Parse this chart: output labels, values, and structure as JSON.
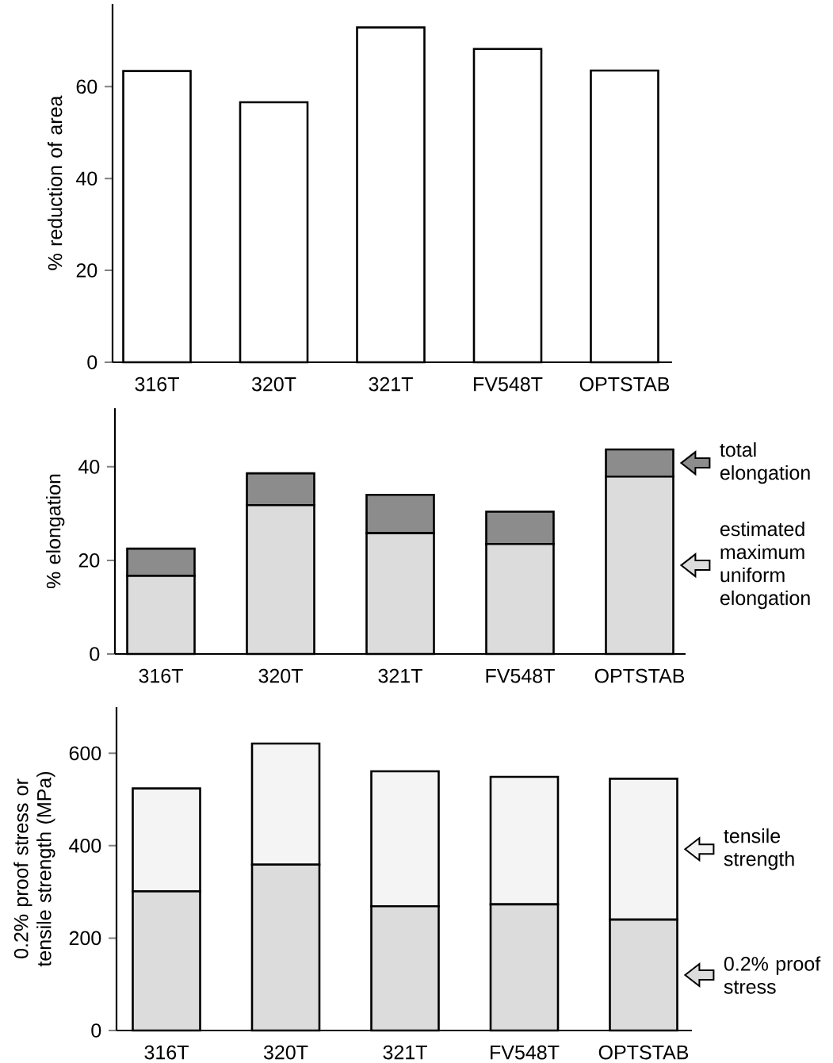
{
  "chart_data": [
    {
      "type": "bar",
      "categories": [
        "316T",
        "320T",
        "321T",
        "FV548T",
        "OPTSTAB"
      ],
      "ylabel": "% reduction of area",
      "ylim": [
        0,
        78
      ],
      "yticks": [
        0,
        20,
        40,
        60
      ],
      "color": "#ffffff",
      "values": [
        63.4,
        56.6,
        72.9,
        68.2,
        63.5
      ]
    },
    {
      "type": "bar",
      "categories": [
        "316T",
        "320T",
        "321T",
        "FV548T",
        "OPTSTAB"
      ],
      "ylabel": "% elongation",
      "ylim": [
        0,
        52.5
      ],
      "yticks": [
        0,
        20,
        40
      ],
      "stacked": true,
      "legend": "right",
      "series": [
        {
          "name": "estimated maximum uniform elongation",
          "color": "#dcdcdc",
          "values": [
            16.7,
            31.8,
            25.8,
            23.5,
            37.9
          ]
        },
        {
          "name": "total elongation",
          "color": "#8c8c8c",
          "values": [
            5.8,
            6.8,
            8.2,
            6.9,
            5.8
          ]
        }
      ]
    },
    {
      "type": "bar",
      "categories": [
        "316T",
        "320T",
        "321T",
        "FV548T",
        "OPTSTAB"
      ],
      "ylabel": "0.2% proof stress or tensile strength (MPa)",
      "ylim": [
        0,
        700
      ],
      "yticks": [
        0,
        200,
        400,
        600
      ],
      "stacked": true,
      "legend": "right",
      "series": [
        {
          "name": "0.2% proof stress",
          "color": "#dcdcdc",
          "values": [
            301,
            359,
            269,
            273,
            240
          ]
        },
        {
          "name": "tensile strength",
          "color": "#f4f4f4",
          "values": [
            223,
            262,
            292,
            276,
            305
          ]
        }
      ]
    }
  ]
}
